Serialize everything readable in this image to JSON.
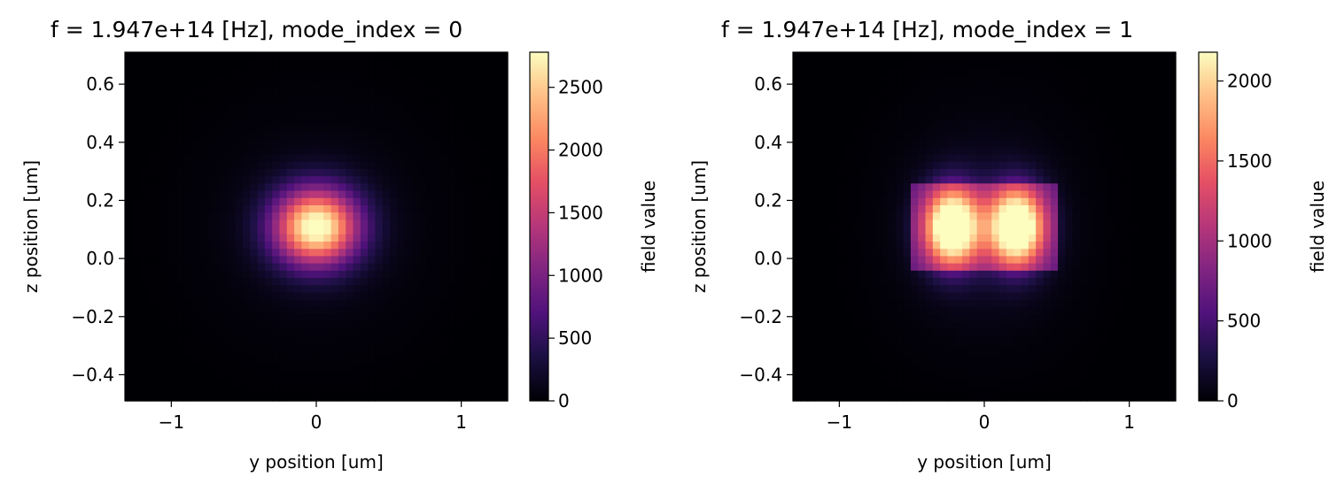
{
  "chart_data": [
    {
      "type": "heatmap",
      "title": "f = 1.947e+14 [Hz], mode_index = 0",
      "xlabel": "y position [um]",
      "ylabel": "z position [um]",
      "xlim": [
        -1.32,
        1.32
      ],
      "ylim": [
        -0.49,
        0.71
      ],
      "xticks": [
        -1,
        0,
        1
      ],
      "xtick_labels": [
        "−1",
        "0",
        "1"
      ],
      "yticks": [
        -0.4,
        -0.2,
        0.0,
        0.2,
        0.4,
        0.6
      ],
      "ytick_labels": [
        "−0.4",
        "−0.2",
        "0.0",
        "0.2",
        "0.4",
        "0.6"
      ],
      "colormap": "magma",
      "colorbar": {
        "label": "field value",
        "range": [
          0,
          2780
        ],
        "ticks": [
          0,
          500,
          1000,
          1500,
          2000,
          2500
        ],
        "tick_labels": [
          "0",
          "500",
          "1000",
          "1500",
          "2000",
          "2500"
        ]
      },
      "field": {
        "peak": 2780,
        "lobes": [
          {
            "y": 0.0,
            "z": 0.11,
            "sy": 0.2,
            "sz": 0.09,
            "amp": 1.0
          }
        ],
        "core": {
          "y_half_width": 0.5,
          "z_min": -0.1,
          "z_max": 0.31,
          "amp": 0.0
        }
      }
    },
    {
      "type": "heatmap",
      "title": "f = 1.947e+14 [Hz], mode_index = 1",
      "xlabel": "y position [um]",
      "ylabel": "z position [um]",
      "xlim": [
        -1.32,
        1.32
      ],
      "ylim": [
        -0.49,
        0.71
      ],
      "xticks": [
        -1,
        0,
        1
      ],
      "xtick_labels": [
        "−1",
        "0",
        "1"
      ],
      "yticks": [
        -0.4,
        -0.2,
        0.0,
        0.2,
        0.4,
        0.6
      ],
      "ytick_labels": [
        "−0.4",
        "−0.2",
        "0.0",
        "0.2",
        "0.4",
        "0.6"
      ],
      "colormap": "magma",
      "colorbar": {
        "label": "field value",
        "range": [
          0,
          2180
        ],
        "ticks": [
          0,
          500,
          1000,
          1500,
          2000
        ],
        "tick_labels": [
          "0",
          "500",
          "1000",
          "1500",
          "2000"
        ]
      },
      "field": {
        "peak": 2180,
        "lobes": [
          {
            "y": -0.22,
            "z": 0.11,
            "sy": 0.13,
            "sz": 0.09,
            "amp": 1.0
          },
          {
            "y": 0.22,
            "z": 0.11,
            "sy": 0.13,
            "sz": 0.09,
            "amp": 1.0
          }
        ],
        "core": {
          "y_half_width": 0.5,
          "z_min": -0.05,
          "z_max": 0.26,
          "amp": 0.25
        }
      }
    }
  ]
}
